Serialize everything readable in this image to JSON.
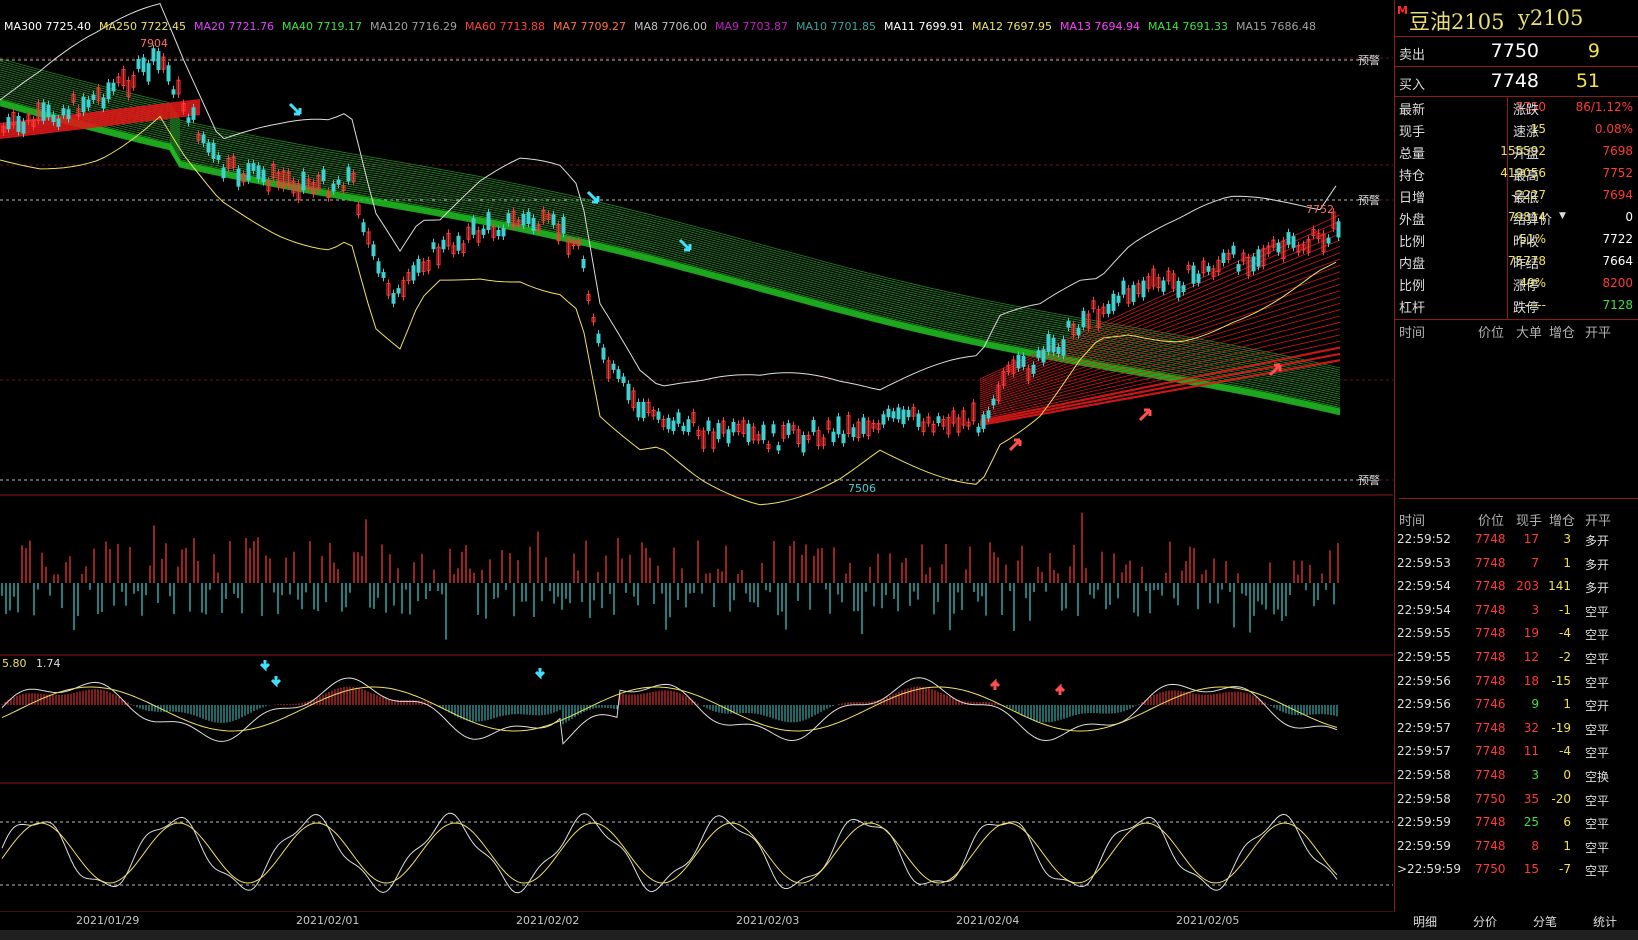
{
  "ma_legend": [
    {
      "label": "MA300 7725.40",
      "color": "#ffffff"
    },
    {
      "label": "MA250 7722.45",
      "color": "#f0e060"
    },
    {
      "label": "MA20 7721.76",
      "color": "#e040ff"
    },
    {
      "label": "MA40 7719.17",
      "color": "#40e040"
    },
    {
      "label": "MA120 7716.29",
      "color": "#a0a0a0"
    },
    {
      "label": "MA60 7713.88",
      "color": "#ff4040"
    },
    {
      "label": "MA7 7709.27",
      "color": "#ff7040"
    },
    {
      "label": "MA8 7706.00",
      "color": "#c0c0c0"
    },
    {
      "label": "MA9 7703.87",
      "color": "#c020c0"
    },
    {
      "label": "MA10 7701.85",
      "color": "#40a0a0"
    },
    {
      "label": "MA11 7699.91",
      "color": "#ffffff"
    },
    {
      "label": "MA12 7697.95",
      "color": "#f0e060"
    },
    {
      "label": "MA13 7694.94",
      "color": "#ff40ff"
    },
    {
      "label": "MA14 7691.33",
      "color": "#40e040"
    },
    {
      "label": "MA15 7686.48",
      "color": "#a0a0a0"
    }
  ],
  "chart_labels": {
    "high_mark": "7904",
    "low_mark": "7506",
    "recent_high": "7752",
    "warn": "预警",
    "macd_v1": "5.80",
    "macd_v2": "1.74"
  },
  "dates": [
    "2021/01/29",
    "2021/02/01",
    "2021/02/02",
    "2021/02/03",
    "2021/02/04",
    "2021/02/05"
  ],
  "colors": {
    "up": "#ff3838",
    "down": "#40d0d0",
    "green_ma": "#22c022",
    "red_ma": "#e01818",
    "yellow": "#f3e24a",
    "grid": "#8a1c1c"
  },
  "panel": {
    "marker": "M",
    "name": "豆油2105",
    "code": "y2105",
    "sell_label": "卖出",
    "sell_price": "7750",
    "sell_vol": "9",
    "buy_label": "买入",
    "buy_price": "7748",
    "buy_vol": "51",
    "stats": [
      {
        "l1": "最新",
        "v1": "7750",
        "c1": "#ff3838",
        "l2": "涨跌",
        "v2": "86/1.12%",
        "c2": "#ff3838"
      },
      {
        "l1": "现手",
        "v1": "15",
        "c1": "#f3e24a",
        "l2": "速涨",
        "v2": "0.08%",
        "c2": "#ff3838"
      },
      {
        "l1": "总量",
        "v1": "155592",
        "c1": "#f3e24a",
        "l2": "开盘",
        "v2": "7698",
        "c2": "#ff3838"
      },
      {
        "l1": "持仓",
        "v1": "419056",
        "c1": "#f3e24a",
        "l2": "最高",
        "v2": "7752",
        "c2": "#ff3838"
      },
      {
        "l1": "日增",
        "v1": "-2227",
        "c1": "#f3e24a",
        "l2": "最低",
        "v2": "7694",
        "c2": "#ff3838"
      },
      {
        "l1": "外盘",
        "v1": "79814",
        "c1": "#f3e24a",
        "l2": "结算价",
        "v2": "0",
        "c2": "#ffffff"
      },
      {
        "l1": "比例",
        "v1": "51%",
        "c1": "#f3e24a",
        "l2": "昨收",
        "v2": "7722",
        "c2": "#ffffff"
      },
      {
        "l1": "内盘",
        "v1": "75778",
        "c1": "#f3e24a",
        "l2": "昨结",
        "v2": "7664",
        "c2": "#ffffff"
      },
      {
        "l1": "比例",
        "v1": "49%",
        "c1": "#f3e24a",
        "l2": "涨停",
        "v2": "8200",
        "c2": "#ff3838"
      },
      {
        "l1": "杠杆",
        "v1": "-----",
        "c1": "#f3e24a",
        "l2": "跌停",
        "v2": "7128",
        "c2": "#40e040"
      }
    ],
    "upper_headers": [
      "时间",
      "价位",
      "大单",
      "增仓",
      "开平"
    ],
    "tick_headers": [
      "时间",
      "价位",
      "现手",
      "增仓",
      "开平"
    ],
    "ticks": [
      {
        "time": "22:59:52",
        "price": "7748",
        "vol": "17",
        "chg": "3",
        "type": "多开"
      },
      {
        "time": "22:59:53",
        "price": "7748",
        "vol": "7",
        "chg": "1",
        "type": "多开"
      },
      {
        "time": "22:59:54",
        "price": "7748",
        "vol": "203",
        "chg": "141",
        "type": "多开"
      },
      {
        "time": "22:59:54",
        "price": "7748",
        "vol": "3",
        "chg": "-1",
        "type": "空平"
      },
      {
        "time": "22:59:55",
        "price": "7748",
        "vol": "19",
        "chg": "-4",
        "type": "空平"
      },
      {
        "time": "22:59:55",
        "price": "7748",
        "vol": "12",
        "chg": "-2",
        "type": "空平"
      },
      {
        "time": "22:59:56",
        "price": "7748",
        "vol": "18",
        "chg": "-15",
        "type": "空平"
      },
      {
        "time": "22:59:56",
        "price": "7746",
        "vol": "9",
        "chg": "1",
        "type": "空开"
      },
      {
        "time": "22:59:57",
        "price": "7748",
        "vol": "32",
        "chg": "-19",
        "type": "空平"
      },
      {
        "time": "22:59:57",
        "price": "7748",
        "vol": "11",
        "chg": "-4",
        "type": "空平"
      },
      {
        "time": "22:59:58",
        "price": "7748",
        "vol": "3",
        "chg": "0",
        "type": "空换"
      },
      {
        "time": "22:59:58",
        "price": "7750",
        "vol": "35",
        "chg": "-20",
        "type": "空平"
      },
      {
        "time": "22:59:59",
        "price": "7748",
        "vol": "25",
        "chg": "6",
        "type": "空平"
      },
      {
        "time": "22:59:59",
        "price": "7748",
        "vol": "8",
        "chg": "1",
        "type": "空平"
      },
      {
        "time": ">22:59:59",
        "price": "7750",
        "vol": "15",
        "chg": "-7",
        "type": "空平"
      }
    ],
    "tabs": [
      "明细",
      "分价",
      "分笔",
      "统计"
    ]
  }
}
